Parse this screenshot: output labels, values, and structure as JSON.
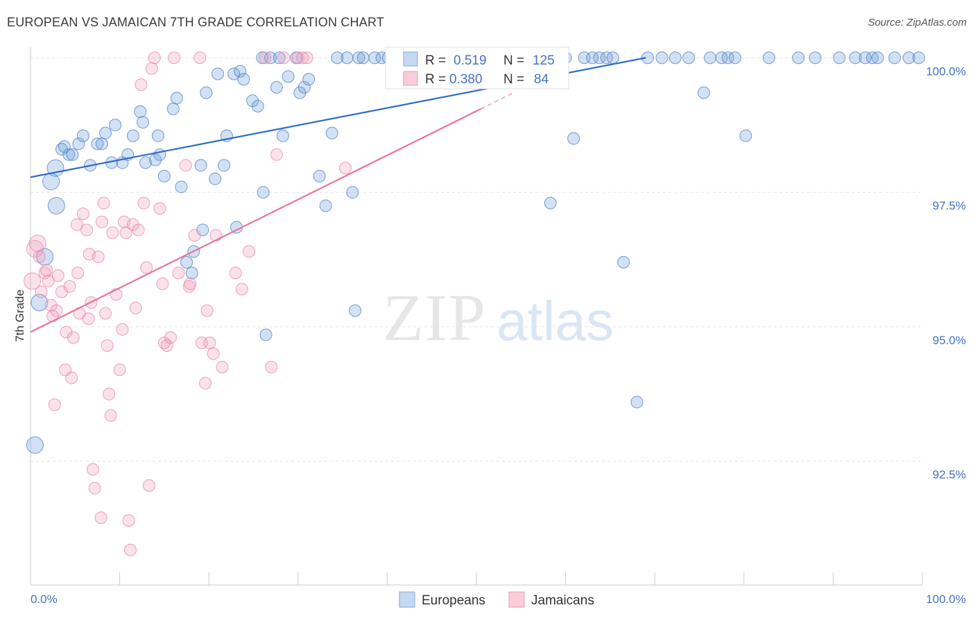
{
  "header": {
    "title": "EUROPEAN VS JAMAICAN 7TH GRADE CORRELATION CHART",
    "source": "Source: ZipAtlas.com"
  },
  "watermark": {
    "zip": "ZIP",
    "atlas": "atlas"
  },
  "legend": {
    "r_label": "R =",
    "n_label": "N =",
    "europeans": {
      "r": "0.519",
      "n": "125"
    },
    "jamaicans": {
      "r": "0.380",
      "n": "84"
    }
  },
  "chart_data": {
    "type": "scatter",
    "title": "EUROPEAN VS JAMAICAN 7TH GRADE CORRELATION CHART",
    "xlabel": "",
    "ylabel": "7th Grade",
    "xlim": [
      0,
      100
    ],
    "ylim": [
      90.2,
      100.3
    ],
    "y_ticks": [
      {
        "value": 100.0,
        "label": "100.0%"
      },
      {
        "value": 97.5,
        "label": "97.5%"
      },
      {
        "value": 95.0,
        "label": "95.0%"
      },
      {
        "value": 92.5,
        "label": "92.5%"
      }
    ],
    "x_tick_labels": {
      "min": "0.0%",
      "max": "100.0%"
    },
    "grid": true,
    "legend_position": "top-center",
    "colors": {
      "europeans": "#6b9bd8",
      "europeans_line": "#2b6cc4",
      "jamaicans": "#f0a0bc",
      "jamaicans_line": "#e8739a"
    },
    "series": [
      {
        "name": "Europeans",
        "trend": {
          "x0": 0,
          "y0": 97.78,
          "x1": 69,
          "y1": 100.0
        },
        "points": [
          [
            2.9,
            97.25
          ],
          [
            1.6,
            96.3
          ],
          [
            1.0,
            95.45
          ],
          [
            0.5,
            92.8
          ],
          [
            2.3,
            97.7
          ],
          [
            2.8,
            97.95
          ],
          [
            3.5,
            98.3
          ],
          [
            3.8,
            98.35
          ],
          [
            4.3,
            98.2
          ],
          [
            4.7,
            98.2
          ],
          [
            5.4,
            98.4
          ],
          [
            5.9,
            98.55
          ],
          [
            6.7,
            98.0
          ],
          [
            7.5,
            98.4
          ],
          [
            8.4,
            98.6
          ],
          [
            8.0,
            98.4
          ],
          [
            9.1,
            98.05
          ],
          [
            9.5,
            98.75
          ],
          [
            10.3,
            98.05
          ],
          [
            10.9,
            98.2
          ],
          [
            11.5,
            98.55
          ],
          [
            12.3,
            99.0
          ],
          [
            12.6,
            98.8
          ],
          [
            12.9,
            98.05
          ],
          [
            14.3,
            98.55
          ],
          [
            14.0,
            98.1
          ],
          [
            14.5,
            98.2
          ],
          [
            15.0,
            97.8
          ],
          [
            16.0,
            99.05
          ],
          [
            16.4,
            99.25
          ],
          [
            16.9,
            97.6
          ],
          [
            17.5,
            96.2
          ],
          [
            18.1,
            96.0
          ],
          [
            18.3,
            96.4
          ],
          [
            19.1,
            98.0
          ],
          [
            19.3,
            96.8
          ],
          [
            19.7,
            99.35
          ],
          [
            20.7,
            97.75
          ],
          [
            21.0,
            99.7
          ],
          [
            21.7,
            98.0
          ],
          [
            22.0,
            98.55
          ],
          [
            22.8,
            99.7
          ],
          [
            23.1,
            96.85
          ],
          [
            23.5,
            99.75
          ],
          [
            23.9,
            99.6
          ],
          [
            24.9,
            99.2
          ],
          [
            25.5,
            99.1
          ],
          [
            26.1,
            97.5
          ],
          [
            26.0,
            100.0
          ],
          [
            26.4,
            94.85
          ],
          [
            26.9,
            100.0
          ],
          [
            27.6,
            99.45
          ],
          [
            27.9,
            100.0
          ],
          [
            28.3,
            98.55
          ],
          [
            28.9,
            99.65
          ],
          [
            29.8,
            100.0
          ],
          [
            30.2,
            99.35
          ],
          [
            30.7,
            99.45
          ],
          [
            31.2,
            99.6
          ],
          [
            32.4,
            97.8
          ],
          [
            33.1,
            97.25
          ],
          [
            33.8,
            98.6
          ],
          [
            34.4,
            100.0
          ],
          [
            35.5,
            100.0
          ],
          [
            36.1,
            97.5
          ],
          [
            36.4,
            95.3
          ],
          [
            36.8,
            100.0
          ],
          [
            37.3,
            100.0
          ],
          [
            38.6,
            100.0
          ],
          [
            39.4,
            100.0
          ],
          [
            40.1,
            100.0
          ],
          [
            40.9,
            100.0
          ],
          [
            41.3,
            100.0
          ],
          [
            41.9,
            100.0
          ],
          [
            42.3,
            100.0
          ],
          [
            43.0,
            100.0
          ],
          [
            43.4,
            100.0
          ],
          [
            44.1,
            100.0
          ],
          [
            45.0,
            100.0
          ],
          [
            46.0,
            100.0
          ],
          [
            46.8,
            100.0
          ],
          [
            47.4,
            100.0
          ],
          [
            48.2,
            100.0
          ],
          [
            49.0,
            100.0
          ],
          [
            49.7,
            100.0
          ],
          [
            50.2,
            100.0
          ],
          [
            51.0,
            100.0
          ],
          [
            51.8,
            100.0
          ],
          [
            52.4,
            100.0
          ],
          [
            53.1,
            100.0
          ],
          [
            53.8,
            100.0
          ],
          [
            54.6,
            100.0
          ],
          [
            55.4,
            100.0
          ],
          [
            56.0,
            100.0
          ],
          [
            56.8,
            100.0
          ],
          [
            57.6,
            100.0
          ],
          [
            58.3,
            97.3
          ],
          [
            59.4,
            100.0
          ],
          [
            60.0,
            100.0
          ],
          [
            60.9,
            98.5
          ],
          [
            62.1,
            100.0
          ],
          [
            63.0,
            100.0
          ],
          [
            63.8,
            100.0
          ],
          [
            64.6,
            100.0
          ],
          [
            65.3,
            100.0
          ],
          [
            66.5,
            96.2
          ],
          [
            68.0,
            93.6
          ],
          [
            69.2,
            100.0
          ],
          [
            70.8,
            100.0
          ],
          [
            72.3,
            100.0
          ],
          [
            73.8,
            100.0
          ],
          [
            75.5,
            99.35
          ],
          [
            76.2,
            100.0
          ],
          [
            77.5,
            100.0
          ],
          [
            78.2,
            100.0
          ],
          [
            79.0,
            100.0
          ],
          [
            80.2,
            98.55
          ],
          [
            82.8,
            100.0
          ],
          [
            86.1,
            100.0
          ],
          [
            88.0,
            100.0
          ],
          [
            90.7,
            100.0
          ],
          [
            92.5,
            100.0
          ],
          [
            93.6,
            100.0
          ],
          [
            94.4,
            100.0
          ],
          [
            95.0,
            100.0
          ],
          [
            96.9,
            100.0
          ],
          [
            98.5,
            100.0
          ],
          [
            99.6,
            100.0
          ]
        ]
      },
      {
        "name": "Jamaicans",
        "trend": {
          "x0": 0,
          "y0": 94.9,
          "x1": 50.5,
          "y1": 99.05
        },
        "points": [
          [
            0.2,
            95.85
          ],
          [
            0.5,
            96.45
          ],
          [
            0.8,
            96.55
          ],
          [
            1.0,
            96.3
          ],
          [
            1.2,
            95.65
          ],
          [
            1.6,
            96.0
          ],
          [
            1.8,
            96.05
          ],
          [
            2.0,
            95.85
          ],
          [
            2.3,
            95.4
          ],
          [
            2.5,
            95.2
          ],
          [
            2.7,
            93.55
          ],
          [
            2.9,
            95.3
          ],
          [
            3.1,
            95.95
          ],
          [
            3.5,
            95.65
          ],
          [
            3.9,
            94.2
          ],
          [
            4.0,
            94.9
          ],
          [
            4.4,
            95.75
          ],
          [
            4.6,
            94.05
          ],
          [
            4.8,
            94.8
          ],
          [
            5.2,
            96.9
          ],
          [
            5.3,
            96.0
          ],
          [
            5.5,
            95.25
          ],
          [
            5.9,
            97.1
          ],
          [
            6.3,
            96.8
          ],
          [
            6.5,
            95.15
          ],
          [
            6.6,
            96.35
          ],
          [
            6.8,
            95.45
          ],
          [
            7.0,
            92.35
          ],
          [
            7.2,
            92.0
          ],
          [
            7.6,
            96.3
          ],
          [
            7.9,
            91.45
          ],
          [
            8.0,
            96.95
          ],
          [
            8.2,
            97.3
          ],
          [
            8.4,
            95.25
          ],
          [
            8.6,
            94.65
          ],
          [
            8.8,
            93.75
          ],
          [
            9.0,
            93.35
          ],
          [
            9.2,
            96.75
          ],
          [
            9.6,
            95.6
          ],
          [
            10.0,
            94.2
          ],
          [
            10.3,
            94.95
          ],
          [
            10.5,
            96.95
          ],
          [
            10.7,
            96.75
          ],
          [
            11.0,
            91.4
          ],
          [
            11.2,
            90.85
          ],
          [
            11.5,
            96.9
          ],
          [
            11.8,
            95.35
          ],
          [
            12.1,
            96.8
          ],
          [
            12.4,
            99.5
          ],
          [
            12.7,
            97.3
          ],
          [
            13.0,
            96.1
          ],
          [
            13.3,
            92.05
          ],
          [
            13.6,
            99.8
          ],
          [
            13.9,
            100.0
          ],
          [
            14.5,
            97.2
          ],
          [
            14.8,
            95.8
          ],
          [
            15.0,
            94.7
          ],
          [
            15.3,
            94.65
          ],
          [
            15.7,
            94.8
          ],
          [
            16.1,
            100.0
          ],
          [
            16.6,
            96.0
          ],
          [
            17.4,
            98.0
          ],
          [
            17.8,
            95.75
          ],
          [
            17.9,
            95.8
          ],
          [
            18.4,
            96.7
          ],
          [
            19.0,
            100.0
          ],
          [
            19.2,
            94.7
          ],
          [
            19.6,
            93.95
          ],
          [
            19.8,
            95.3
          ],
          [
            20.1,
            94.7
          ],
          [
            20.5,
            94.5
          ],
          [
            20.8,
            96.7
          ],
          [
            21.5,
            94.25
          ],
          [
            23.0,
            96.0
          ],
          [
            23.7,
            95.7
          ],
          [
            24.5,
            96.4
          ],
          [
            26.3,
            100.0
          ],
          [
            27.0,
            94.25
          ],
          [
            27.6,
            98.2
          ],
          [
            28.4,
            100.0
          ],
          [
            30.0,
            100.0
          ],
          [
            30.5,
            100.0
          ],
          [
            31.0,
            100.0
          ],
          [
            35.3,
            97.95
          ]
        ]
      }
    ]
  },
  "bottom_legend": {
    "europeans": "Europeans",
    "jamaicans": "Jamaicans"
  }
}
